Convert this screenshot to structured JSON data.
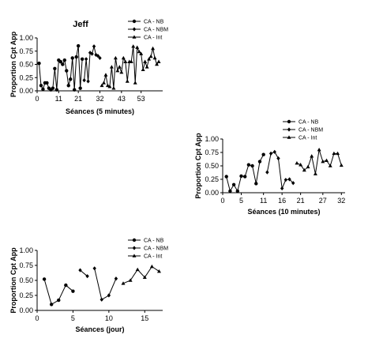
{
  "chart_data": [
    {
      "type": "line",
      "title": "Jeff",
      "xlabel": "Séances (5 minutes)",
      "ylabel": "Proportion Cpt App",
      "xlim": [
        0,
        64
      ],
      "ylim": [
        0,
        1
      ],
      "xticks": [
        0,
        11,
        21,
        32,
        43,
        53
      ],
      "yticks": [
        0,
        0.25,
        0.5,
        0.75,
        1
      ],
      "ytick_labels": [
        "0.00",
        "0.25",
        "0.50",
        "0.75",
        "1.00"
      ],
      "legend_position": "top-right",
      "legend": [
        "CA - NB",
        "CA - NBM",
        "CA - Int"
      ],
      "series": [
        {
          "name": "CA - NB",
          "marker": "circle",
          "segments": [
            [
              [
                1,
                0.52
              ],
              [
                2,
                0.1
              ],
              [
                3,
                0.03
              ],
              [
                4,
                0.15
              ],
              [
                5,
                0.15
              ],
              [
                6,
                0.05
              ],
              [
                7,
                0.02
              ],
              [
                8,
                0.05
              ],
              [
                9,
                0.42
              ],
              [
                10,
                0.02
              ],
              [
                11,
                0.58
              ],
              [
                12,
                0.55
              ],
              [
                13,
                0.5
              ],
              [
                14,
                0.58
              ],
              [
                15,
                0.38
              ],
              [
                16,
                0.1
              ],
              [
                17,
                0.22
              ],
              [
                18,
                0.62
              ],
              [
                19,
                0.02
              ],
              [
                20,
                0.64
              ],
              [
                21,
                0.85
              ],
              [
                22,
                0.05
              ],
              [
                23,
                0.6
              ]
            ]
          ]
        },
        {
          "name": "CA - NBM",
          "marker": "diamond",
          "segments": [
            [
              [
                24,
                0.2
              ],
              [
                25,
                0.6
              ],
              [
                26,
                0.18
              ],
              [
                27,
                0.72
              ],
              [
                28,
                0.7
              ],
              [
                29,
                0.84
              ],
              [
                30,
                0.68
              ],
              [
                31,
                0.66
              ],
              [
                32,
                0.62
              ]
            ]
          ]
        },
        {
          "name": "CA - Int",
          "marker": "triangle",
          "segments": [
            [
              [
                33,
                0.1
              ],
              [
                34,
                0.15
              ],
              [
                35,
                0.3
              ],
              [
                36,
                0.1
              ],
              [
                37,
                0.08
              ],
              [
                38,
                0.45
              ],
              [
                39,
                0.05
              ],
              [
                40,
                0.62
              ],
              [
                41,
                0.38
              ],
              [
                42,
                0.45
              ],
              [
                43,
                0.35
              ],
              [
                44,
                0.62
              ],
              [
                45,
                0.55
              ],
              [
                46,
                0.18
              ],
              [
                47,
                0.55
              ],
              [
                48,
                0.55
              ],
              [
                49,
                0.84
              ],
              [
                50,
                0.15
              ],
              [
                51,
                0.82
              ],
              [
                52,
                0.74
              ],
              [
                53,
                0.7
              ],
              [
                54,
                0.4
              ],
              [
                55,
                0.55
              ],
              [
                56,
                0.45
              ],
              [
                57,
                0.6
              ],
              [
                58,
                0.65
              ],
              [
                59,
                0.8
              ],
              [
                60,
                0.62
              ],
              [
                61,
                0.5
              ],
              [
                62,
                0.55
              ]
            ]
          ]
        }
      ]
    },
    {
      "type": "line",
      "title": "",
      "xlabel": "Séances (10 minutes)",
      "ylabel": "Proportion Cpt App",
      "xlim": [
        0,
        33
      ],
      "ylim": [
        0,
        1
      ],
      "xticks": [
        0,
        5,
        11,
        16,
        21,
        27,
        32
      ],
      "yticks": [
        0,
        0.25,
        0.5,
        0.75,
        1
      ],
      "ytick_labels": [
        "0.00",
        "0.25",
        "0.50",
        "0.75",
        "1.00"
      ],
      "legend_position": "top-right",
      "legend": [
        "CA - NB",
        "CA - NBM",
        "CA - Int"
      ],
      "series": [
        {
          "name": "CA - NB",
          "marker": "circle",
          "segments": [
            [
              [
                1,
                0.3
              ],
              [
                2,
                0.03
              ],
              [
                3,
                0.15
              ],
              [
                4,
                0.03
              ],
              [
                5,
                0.31
              ],
              [
                6,
                0.3
              ],
              [
                7,
                0.52
              ],
              [
                8,
                0.5
              ],
              [
                9,
                0.17
              ],
              [
                10,
                0.58
              ],
              [
                11,
                0.71
              ]
            ]
          ]
        },
        {
          "name": "CA - NBM",
          "marker": "diamond",
          "segments": [
            [
              [
                12,
                0.38
              ],
              [
                13,
                0.73
              ],
              [
                14,
                0.76
              ],
              [
                15,
                0.64
              ],
              [
                16,
                0.08
              ],
              [
                17,
                0.24
              ],
              [
                18,
                0.25
              ],
              [
                19,
                0.18
              ]
            ]
          ]
        },
        {
          "name": "CA - Int",
          "marker": "triangle",
          "segments": [
            [
              [
                20,
                0.55
              ],
              [
                21,
                0.52
              ],
              [
                22,
                0.42
              ],
              [
                23,
                0.48
              ],
              [
                24,
                0.68
              ],
              [
                25,
                0.35
              ],
              [
                26,
                0.8
              ],
              [
                27,
                0.58
              ],
              [
                28,
                0.6
              ],
              [
                29,
                0.5
              ],
              [
                30,
                0.73
              ],
              [
                31,
                0.73
              ],
              [
                32,
                0.51
              ]
            ]
          ]
        }
      ]
    },
    {
      "type": "line",
      "title": "",
      "xlabel": "Séances (jour)",
      "ylabel": "Proportion Cpt App",
      "xlim": [
        0,
        17.5
      ],
      "ylim": [
        0,
        1
      ],
      "xticks": [
        0,
        5,
        10,
        15
      ],
      "yticks": [
        0,
        0.25,
        0.5,
        0.75,
        1
      ],
      "ytick_labels": [
        "0.00",
        "0.25",
        "0.50",
        "0.75",
        "1.00"
      ],
      "legend_position": "top-right",
      "legend": [
        "CA - NB",
        "CA - NBM",
        "CA - Int"
      ],
      "series": [
        {
          "name": "CA - NB",
          "marker": "circle",
          "segments": [
            [
              [
                1,
                0.52
              ],
              [
                2,
                0.1
              ],
              [
                3,
                0.17
              ],
              [
                4,
                0.42
              ],
              [
                5,
                0.32
              ]
            ]
          ]
        },
        {
          "name": "CA - NBM",
          "marker": "diamond",
          "segments": [
            [
              [
                6,
                0.67
              ],
              [
                7,
                0.57
              ]
            ],
            [
              [
                8,
                0.7
              ],
              [
                9,
                0.18
              ],
              [
                10,
                0.25
              ],
              [
                11,
                0.53
              ]
            ]
          ]
        },
        {
          "name": "CA - Int",
          "marker": "triangle",
          "segments": [
            [
              [
                12,
                0.45
              ],
              [
                13,
                0.5
              ],
              [
                14,
                0.68
              ],
              [
                15,
                0.55
              ],
              [
                16,
                0.73
              ],
              [
                17,
                0.65
              ]
            ]
          ]
        }
      ]
    }
  ]
}
